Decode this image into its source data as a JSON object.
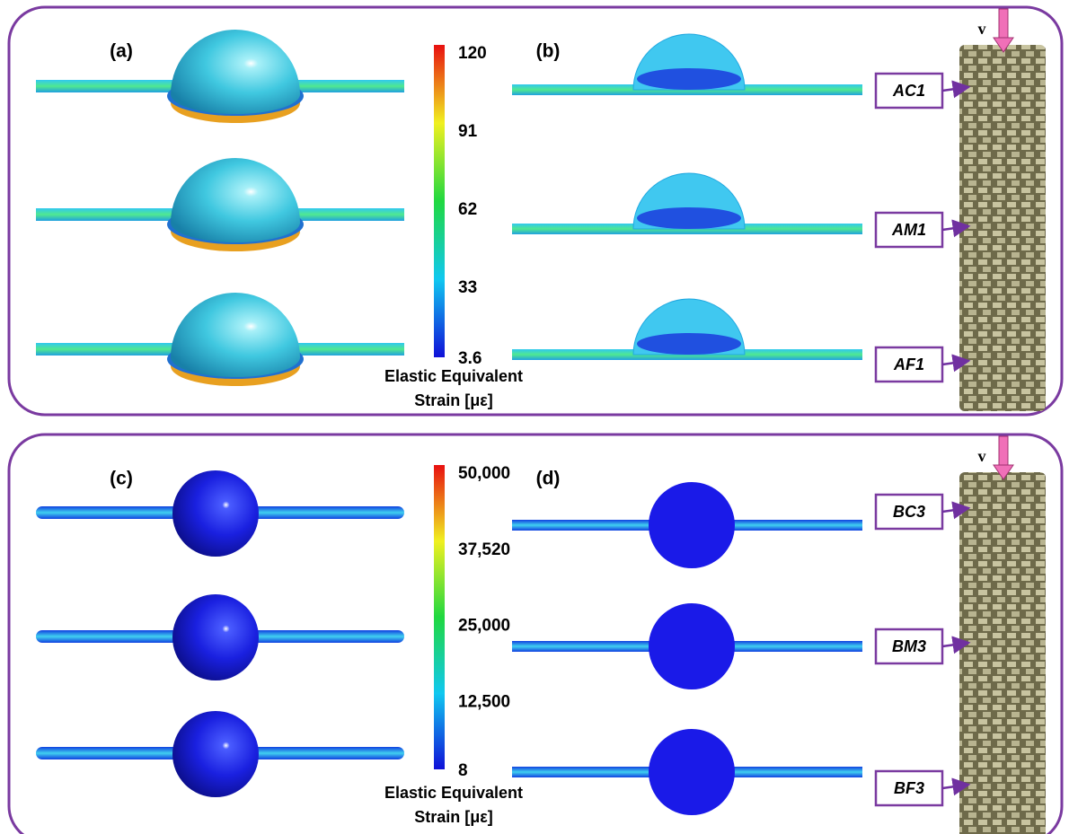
{
  "sections": [
    {
      "panel_labels": [
        "(a)",
        "(b)"
      ],
      "colorbar": {
        "ticks": [
          "120",
          "91",
          "62",
          "33",
          "3.6"
        ],
        "title": [
          "Elastic Equivalent",
          "Strain [με]"
        ]
      },
      "load_label": "v",
      "specimen_labels": [
        "AC1",
        "AM1",
        "AF1"
      ]
    },
    {
      "panel_labels": [
        "(c)",
        "(d)"
      ],
      "colorbar": {
        "ticks": [
          "50,000",
          "37,520",
          "25,000",
          "12,500",
          "8"
        ],
        "title": [
          "Elastic Equivalent",
          "Strain [με]"
        ]
      },
      "load_label": "v",
      "specimen_labels": [
        "BC3",
        "BM3",
        "BF3"
      ]
    }
  ]
}
